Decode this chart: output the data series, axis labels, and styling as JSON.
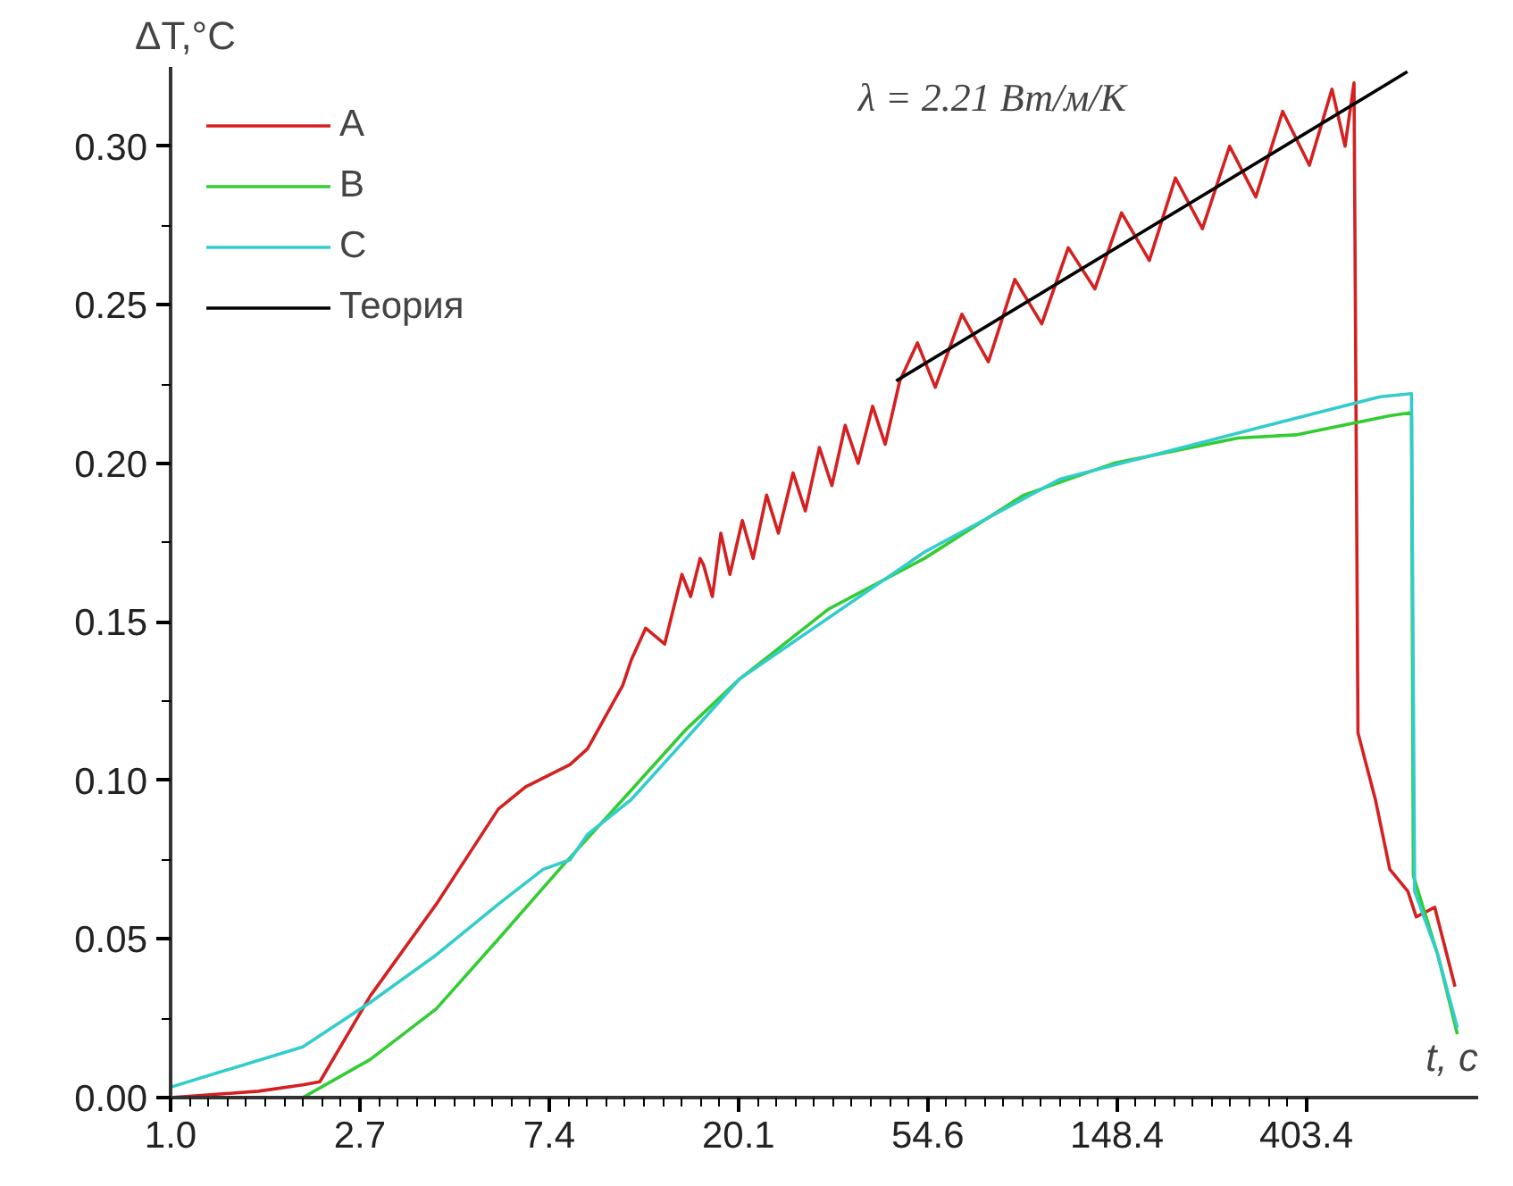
{
  "chart_data": {
    "type": "line",
    "xlabel": "t, c",
    "ylabel": "ΔT,°C",
    "log": "x",
    "grid": false,
    "legend": "top left",
    "marker": "none",
    "line_style": "solid",
    "xlim": [
      1,
      1000
    ],
    "ylim": [
      0,
      0.325
    ],
    "xticks": [
      {
        "value": 1,
        "label": "1.0"
      },
      {
        "value": 2.718,
        "label": "2.7"
      },
      {
        "value": 7.389,
        "label": "7.4"
      },
      {
        "value": 20.09,
        "label": "20.1"
      },
      {
        "value": 54.6,
        "label": "54.6"
      },
      {
        "value": 148.4,
        "label": "148.4"
      },
      {
        "value": 403.4,
        "label": "403.4"
      }
    ],
    "yticks": [
      {
        "value": 0,
        "label": "0.00"
      },
      {
        "value": 0.05,
        "label": "0.05"
      },
      {
        "value": 0.1,
        "label": "0.10"
      },
      {
        "value": 0.15,
        "label": "0.15"
      },
      {
        "value": 0.2,
        "label": "0.20"
      },
      {
        "value": 0.25,
        "label": "0.25"
      },
      {
        "value": 0.3,
        "label": "0.30"
      }
    ],
    "annotations": [
      "λ = 2.21 Вт/м/К"
    ],
    "series": [
      {
        "name": "A",
        "color": "#d42020",
        "x": [
          1.0,
          1.59,
          2.01,
          2.2,
          2.87,
          4.07,
          5.65,
          6.52,
          8.25,
          9.05,
          10.9,
          11.4,
          12.3,
          13.6,
          14.9,
          15.6,
          16.4,
          16.7,
          17.5,
          18.3,
          19.2,
          20.5,
          21.7,
          23.3,
          24.8,
          26.8,
          28.6,
          30.8,
          32.9,
          35.3,
          37.8,
          40.8,
          43.6,
          47.1,
          51.7,
          56.8,
          65.4,
          75.2,
          86.5,
          99.7,
          114.7,
          132,
          152,
          176,
          202,
          233,
          269,
          309,
          356,
          410,
          462,
          495,
          519,
          530,
          581,
          627,
          690,
          721,
          795,
          855,
          885
        ],
        "values": [
          0,
          0.002,
          0.004,
          0.005,
          0.032,
          0.061,
          0.091,
          0.098,
          0.105,
          0.11,
          0.13,
          0.138,
          0.148,
          0.143,
          0.165,
          0.158,
          0.17,
          0.168,
          0.158,
          0.178,
          0.165,
          0.182,
          0.17,
          0.19,
          0.178,
          0.197,
          0.185,
          0.205,
          0.193,
          0.212,
          0.2,
          0.218,
          0.206,
          0.226,
          0.238,
          0.224,
          0.247,
          0.232,
          0.258,
          0.244,
          0.268,
          0.255,
          0.279,
          0.264,
          0.29,
          0.274,
          0.3,
          0.284,
          0.311,
          0.294,
          0.318,
          0.3,
          0.32,
          0.115,
          0.094,
          0.072,
          0.065,
          0.057,
          0.06,
          0.043,
          0.035
        ]
      },
      {
        "name": "B",
        "color": "#33cc33",
        "x": [
          1.0,
          2.01,
          2.87,
          4.07,
          5.65,
          7.8,
          10.9,
          15.2,
          20.2,
          32.3,
          53.6,
          90.7,
          145.6,
          281,
          382,
          627,
          703,
          710,
          808,
          896
        ],
        "values": [
          0,
          0,
          0.012,
          0.028,
          0.05,
          0.072,
          0.094,
          0.116,
          0.132,
          0.154,
          0.17,
          0.19,
          0.2,
          0.208,
          0.209,
          0.215,
          0.216,
          0.07,
          0.045,
          0.02
        ]
      },
      {
        "name": "C",
        "color": "#33cccc",
        "x": [
          1.0,
          2.01,
          2.87,
          4.07,
          5.65,
          7.16,
          8.25,
          9.05,
          11.4,
          15.2,
          20.2,
          53.6,
          109.7,
          309,
          596,
          703,
          715,
          808,
          896
        ],
        "values": [
          0.0033,
          0.016,
          0.03,
          0.045,
          0.061,
          0.072,
          0.075,
          0.083,
          0.094,
          0.113,
          0.132,
          0.172,
          0.195,
          0.211,
          0.221,
          0.222,
          0.065,
          0.045,
          0.022
        ]
      },
      {
        "name": "Теория",
        "color": "#000000",
        "x": [
          46.2,
          688
        ],
        "values": [
          0.226,
          0.3235
        ]
      }
    ]
  }
}
